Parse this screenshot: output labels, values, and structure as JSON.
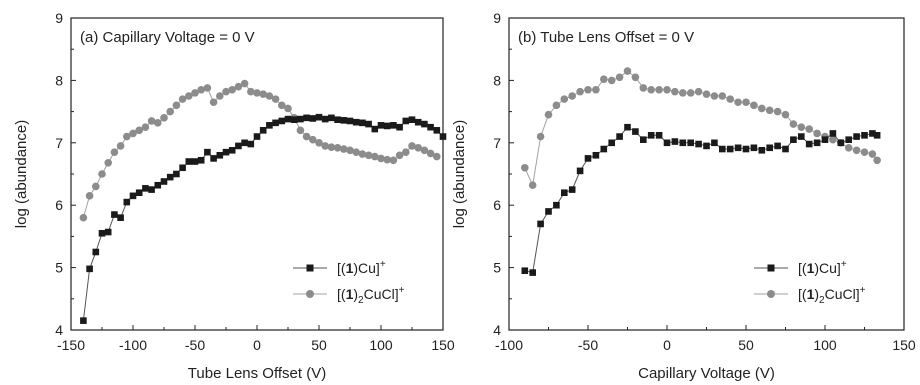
{
  "chart_data": [
    {
      "type": "line",
      "title": "(a) Capillary Voltage = 0 V",
      "xlabel": "Tube Lens Offset (V)",
      "ylabel": "log (abundance)",
      "xlim": [
        -150,
        150
      ],
      "ylim": [
        4,
        9
      ],
      "xticks": [
        -150,
        -100,
        -50,
        0,
        50,
        100,
        150
      ],
      "yticks": [
        4,
        5,
        6,
        7,
        8,
        9
      ],
      "grid": false,
      "legend_position": "bottom-right",
      "series": [
        {
          "name": "[(1)Cu]+",
          "legend": {
            "pre": "[(",
            "bold": "1",
            "post": ")Cu]",
            "sup": "+"
          },
          "marker": "square",
          "color": "#1a1a1a",
          "line_color": "#555555",
          "x": [
            -140,
            -135,
            -130,
            -125,
            -120,
            -115,
            -110,
            -105,
            -100,
            -95,
            -90,
            -85,
            -80,
            -75,
            -70,
            -65,
            -60,
            -55,
            -50,
            -45,
            -40,
            -35,
            -30,
            -25,
            -20,
            -15,
            -10,
            -5,
            0,
            5,
            10,
            15,
            20,
            25,
            30,
            35,
            40,
            45,
            50,
            55,
            60,
            65,
            70,
            75,
            80,
            85,
            90,
            95,
            100,
            105,
            110,
            115,
            120,
            125,
            130,
            135,
            140,
            145,
            150
          ],
          "y": [
            4.15,
            4.98,
            5.25,
            5.55,
            5.57,
            5.85,
            5.8,
            6.05,
            6.15,
            6.2,
            6.27,
            6.25,
            6.32,
            6.38,
            6.45,
            6.5,
            6.6,
            6.7,
            6.7,
            6.72,
            6.85,
            6.75,
            6.8,
            6.85,
            6.88,
            6.95,
            7.0,
            6.98,
            7.1,
            7.2,
            7.28,
            7.32,
            7.35,
            7.38,
            7.37,
            7.38,
            7.4,
            7.39,
            7.41,
            7.38,
            7.4,
            7.37,
            7.36,
            7.35,
            7.33,
            7.32,
            7.3,
            7.22,
            7.28,
            7.27,
            7.28,
            7.25,
            7.35,
            7.37,
            7.33,
            7.3,
            7.25,
            7.2,
            7.1
          ]
        },
        {
          "name": "[(1)2CuCl]+",
          "legend": {
            "pre": "[(",
            "bold": "1",
            "post": ")",
            "sub": "2",
            "post2": "CuCl]",
            "sup": "+"
          },
          "marker": "circle",
          "color": "#8c8c8c",
          "line_color": "#a0a0a0",
          "x": [
            -140,
            -135,
            -130,
            -125,
            -120,
            -115,
            -110,
            -105,
            -100,
            -95,
            -90,
            -85,
            -80,
            -75,
            -70,
            -65,
            -60,
            -55,
            -50,
            -45,
            -40,
            -35,
            -30,
            -25,
            -20,
            -15,
            -10,
            -5,
            0,
            5,
            10,
            15,
            20,
            25,
            30,
            35,
            40,
            45,
            50,
            55,
            60,
            65,
            70,
            75,
            80,
            85,
            90,
            95,
            100,
            105,
            110,
            115,
            120,
            125,
            130,
            135,
            140,
            145
          ],
          "y": [
            5.8,
            6.15,
            6.3,
            6.5,
            6.68,
            6.85,
            6.95,
            7.1,
            7.15,
            7.2,
            7.25,
            7.35,
            7.32,
            7.4,
            7.5,
            7.6,
            7.7,
            7.75,
            7.8,
            7.85,
            7.88,
            7.65,
            7.75,
            7.82,
            7.85,
            7.9,
            7.95,
            7.82,
            7.8,
            7.78,
            7.75,
            7.7,
            7.6,
            7.55,
            7.4,
            7.2,
            7.1,
            7.05,
            7.0,
            6.95,
            6.93,
            6.92,
            6.9,
            6.88,
            6.85,
            6.82,
            6.8,
            6.78,
            6.75,
            6.73,
            6.72,
            6.8,
            6.85,
            6.95,
            6.92,
            6.88,
            6.83,
            6.78
          ]
        }
      ]
    },
    {
      "type": "line",
      "title": "(b) Tube Lens Offset = 0 V",
      "xlabel": "Capillary Voltage (V)",
      "ylabel": "log (abundance)",
      "xlim": [
        -100,
        150
      ],
      "ylim": [
        4,
        9
      ],
      "xticks": [
        -100,
        -50,
        0,
        50,
        100,
        150
      ],
      "yticks": [
        4,
        5,
        6,
        7,
        8,
        9
      ],
      "grid": false,
      "legend_position": "bottom-right",
      "series": [
        {
          "name": "[(1)Cu]+",
          "legend": {
            "pre": "[(",
            "bold": "1",
            "post": ")Cu]",
            "sup": "+"
          },
          "marker": "square",
          "color": "#1a1a1a",
          "line_color": "#555555",
          "x": [
            -90,
            -85,
            -80,
            -75,
            -70,
            -65,
            -60,
            -55,
            -50,
            -45,
            -40,
            -35,
            -30,
            -25,
            -20,
            -15,
            -10,
            -5,
            0,
            5,
            10,
            15,
            20,
            25,
            30,
            35,
            40,
            45,
            50,
            55,
            60,
            65,
            70,
            75,
            80,
            85,
            90,
            95,
            100,
            105,
            110,
            115,
            120,
            125,
            130,
            133
          ],
          "y": [
            4.95,
            4.92,
            5.7,
            5.9,
            6.0,
            6.2,
            6.25,
            6.55,
            6.75,
            6.8,
            6.9,
            7.0,
            7.1,
            7.25,
            7.18,
            7.05,
            7.12,
            7.12,
            7.0,
            7.02,
            7.0,
            7.0,
            6.98,
            6.95,
            7.0,
            6.9,
            6.9,
            6.92,
            6.9,
            6.92,
            6.88,
            6.92,
            6.95,
            6.9,
            7.05,
            7.1,
            6.98,
            7.0,
            7.05,
            7.15,
            7.0,
            7.05,
            7.1,
            7.12,
            7.15,
            7.12
          ]
        },
        {
          "name": "[(1)2CuCl]+",
          "legend": {
            "pre": "[(",
            "bold": "1",
            "post": ")",
            "sub": "2",
            "post2": "CuCl]",
            "sup": "+"
          },
          "marker": "circle",
          "color": "#8c8c8c",
          "line_color": "#a0a0a0",
          "x": [
            -90,
            -85,
            -80,
            -75,
            -70,
            -65,
            -60,
            -55,
            -50,
            -45,
            -40,
            -35,
            -30,
            -25,
            -20,
            -15,
            -10,
            -5,
            0,
            5,
            10,
            15,
            20,
            25,
            30,
            35,
            40,
            45,
            50,
            55,
            60,
            65,
            70,
            75,
            80,
            85,
            90,
            95,
            100,
            105,
            110,
            115,
            120,
            125,
            130,
            133
          ],
          "y": [
            6.6,
            6.32,
            7.1,
            7.45,
            7.6,
            7.7,
            7.75,
            7.82,
            7.85,
            7.85,
            8.02,
            8.0,
            8.05,
            8.15,
            8.05,
            7.88,
            7.85,
            7.85,
            7.85,
            7.82,
            7.8,
            7.8,
            7.82,
            7.78,
            7.75,
            7.75,
            7.7,
            7.65,
            7.65,
            7.6,
            7.55,
            7.52,
            7.5,
            7.45,
            7.3,
            7.25,
            7.22,
            7.15,
            7.1,
            7.05,
            7.0,
            6.92,
            6.88,
            6.85,
            6.82,
            6.72
          ]
        }
      ]
    }
  ]
}
